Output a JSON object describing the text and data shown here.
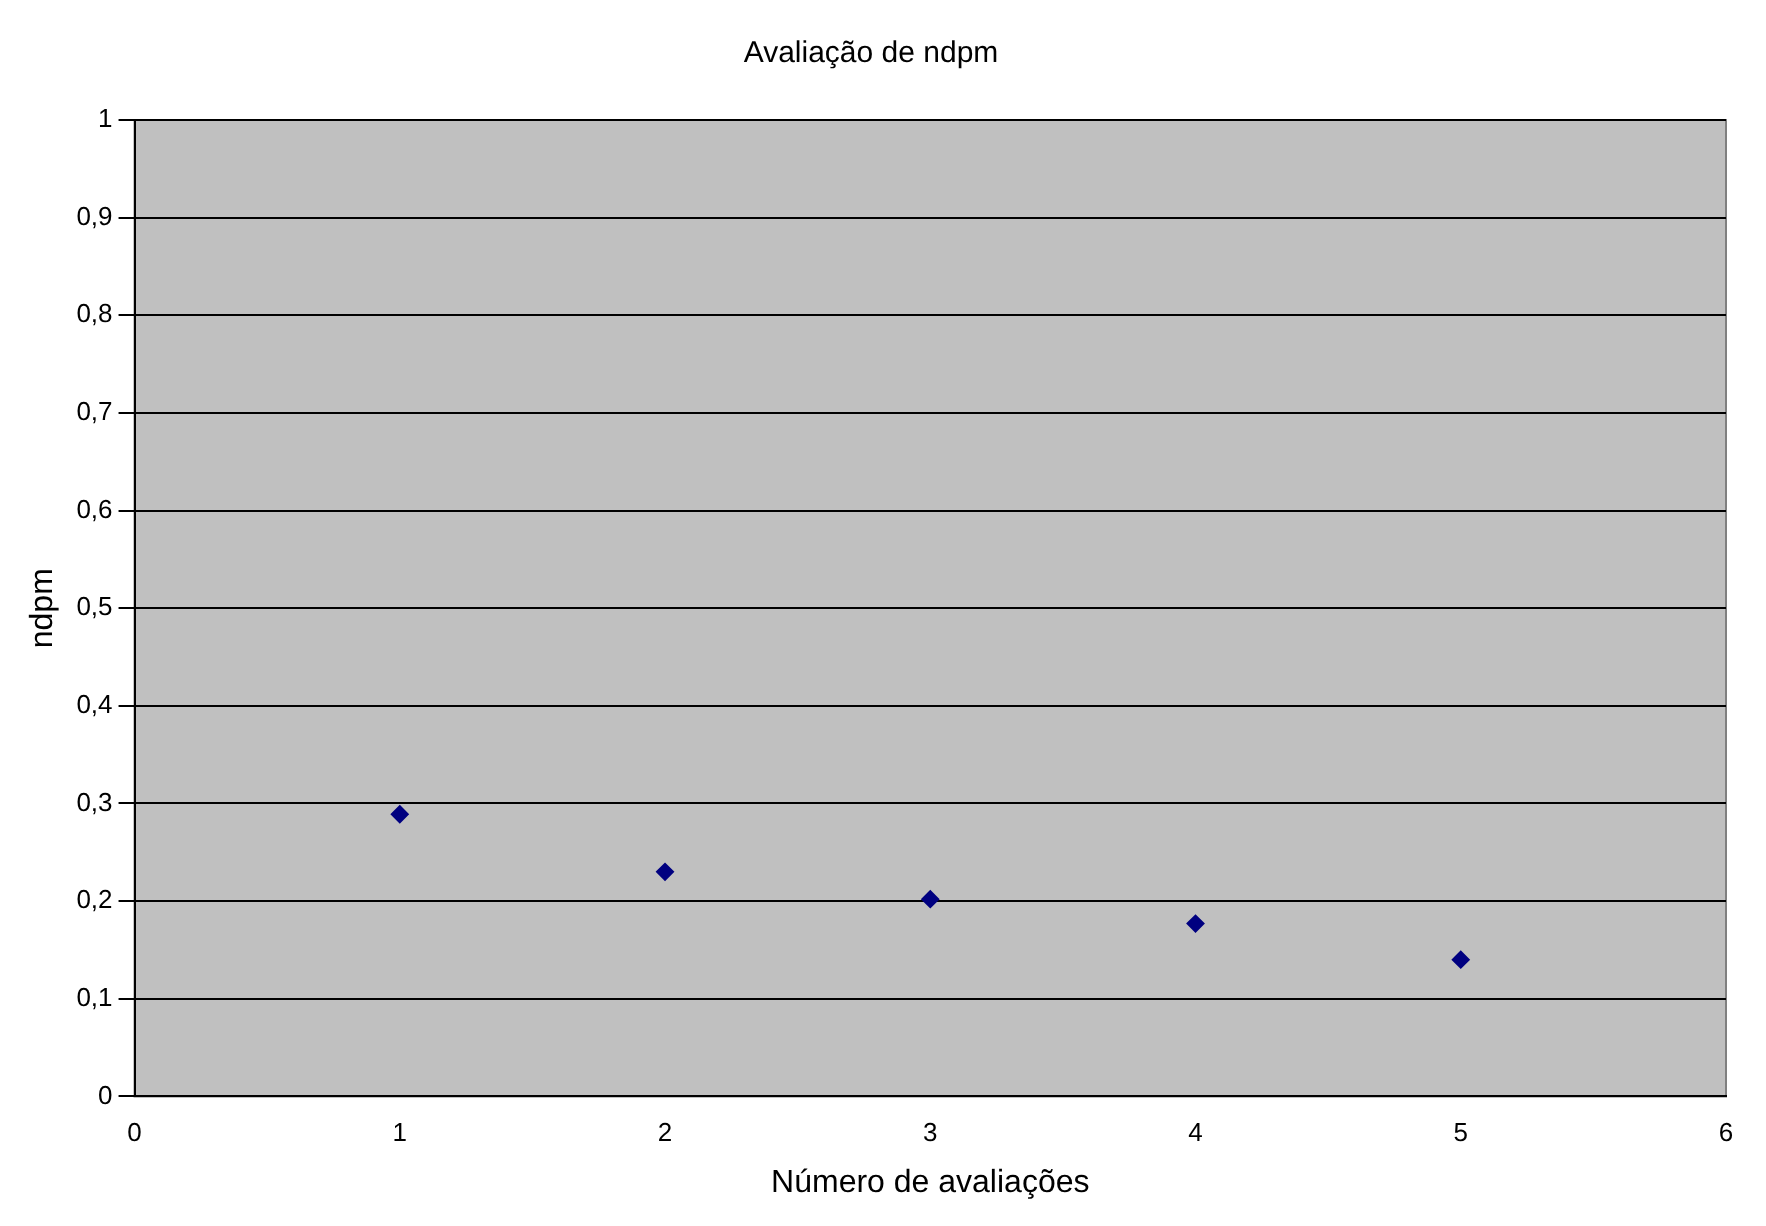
{
  "chart_data": {
    "type": "scatter",
    "title": "Avaliação de ndpm",
    "xlabel": "Número de avaliações",
    "ylabel": "ndpm",
    "x": [
      1,
      2,
      3,
      4,
      5
    ],
    "series": [
      {
        "color": "#000080",
        "values": [
          0.289,
          0.23,
          0.202,
          0.177,
          0.14
        ]
      }
    ],
    "xlim": [
      0,
      6
    ],
    "xticks": [
      0,
      1,
      2,
      3,
      4,
      5,
      6
    ],
    "ylim": [
      0,
      1
    ],
    "yticks": [
      0,
      {
        "value": 0.1,
        "label": "0,1"
      },
      {
        "value": 0.2,
        "label": "0,2"
      },
      {
        "value": 0.3,
        "label": "0,3"
      },
      {
        "value": 0.4,
        "label": "0,4"
      },
      {
        "value": 0.5,
        "label": "0,5"
      },
      {
        "value": 0.6,
        "label": "0,6"
      },
      {
        "value": 0.7,
        "label": "0,7"
      },
      {
        "value": 0.8,
        "label": "0,8"
      },
      {
        "value": 0.9,
        "label": "0,9"
      },
      1
    ],
    "grid": "y",
    "legend": false,
    "marker": "diamond"
  }
}
